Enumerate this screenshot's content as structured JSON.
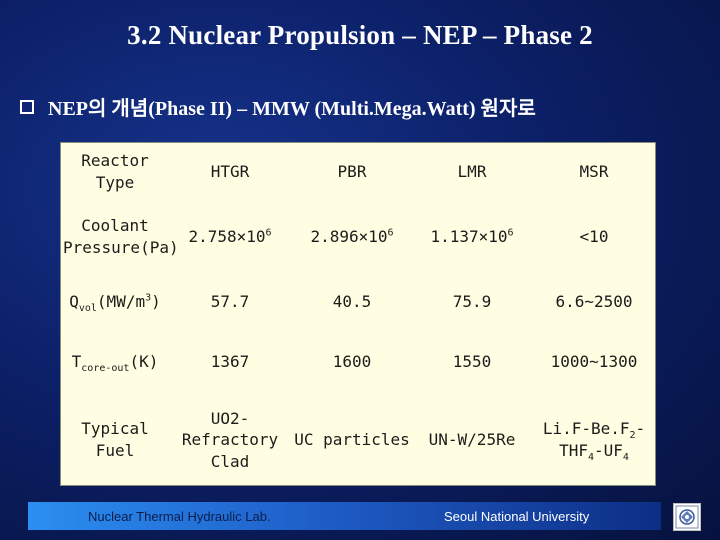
{
  "slide": {
    "title": "3.2 Nuclear Propulsion – NEP – Phase 2",
    "bullet_text": "NEP의 개념(Phase II) – MMW (Multi.Mega.Watt) 원자로"
  },
  "table": {
    "header": {
      "label": "Reactor Type",
      "cols": [
        "HTGR",
        "PBR",
        "LMR",
        "MSR"
      ]
    },
    "rows": {
      "pressure": {
        "label": "Coolant Pressure(Pa)",
        "c1_base": "2.758×10",
        "c1_exp": "6",
        "c2_base": "2.896×10",
        "c2_exp": "6",
        "c3_base": "1.137×10",
        "c3_exp": "6",
        "c4": "<10"
      },
      "qvol": {
        "label_main": "Q",
        "label_sub": "vol",
        "label_mid": "(MW/m",
        "label_sup": "3",
        "label_end": ")",
        "c1": "57.7",
        "c2": "40.5",
        "c3": "75.9",
        "c4": "6.6~2500"
      },
      "tcore": {
        "label_main": "T",
        "label_sub": "core-out",
        "label_end": "(K)",
        "c1": "1367",
        "c2": "1600",
        "c3": "1550",
        "c4": "1000~1300"
      },
      "fuel": {
        "label": "Typical Fuel",
        "c1": "UO2-Refractory Clad",
        "c2": "UC particles",
        "c3": "UN-W/25Re",
        "c4_a": "Li.F-Be.F",
        "c4_b": "2",
        "c4_c": "-THF",
        "c4_d": "4",
        "c4_e": "-UF",
        "c4_f": "4"
      }
    }
  },
  "footer": {
    "left": "Nuclear Thermal Hydraulic Lab.",
    "right": "Seoul National University"
  },
  "colors": {
    "table_bg": "#fffde2",
    "footer_start": "#2b8ff0",
    "footer_end": "#0d2e86"
  }
}
